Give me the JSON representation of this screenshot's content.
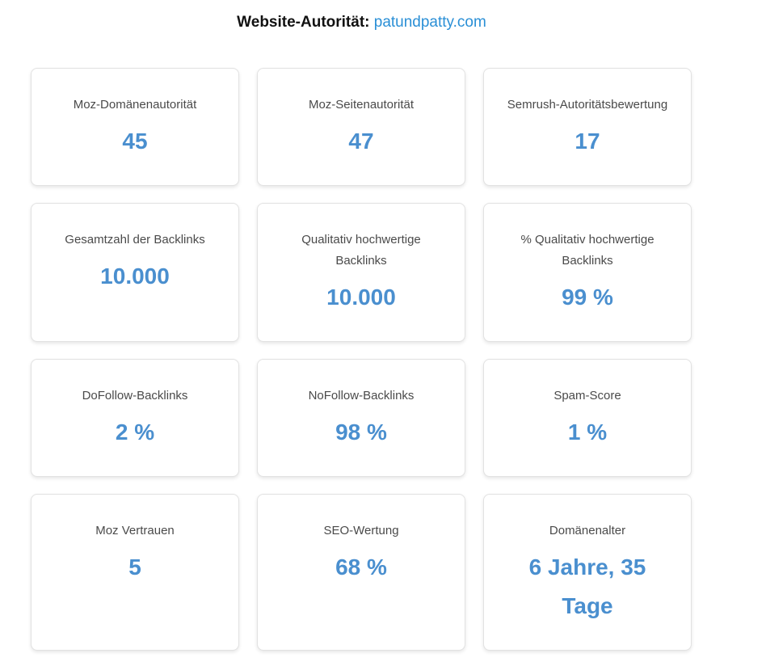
{
  "header": {
    "label": "Website-Autorität:",
    "domain": "patundpatty.com"
  },
  "cards": [
    {
      "label": "Moz-Domänenautorität",
      "value": "45"
    },
    {
      "label": "Moz-Seitenautorität",
      "value": "47"
    },
    {
      "label": "Semrush-Autoritätsbewertung",
      "value": "17"
    },
    {
      "label": "Gesamtzahl der Backlinks",
      "value": "10.000"
    },
    {
      "label": "Qualitativ hochwertige Backlinks",
      "value": "10.000"
    },
    {
      "label": "% Qualitativ hochwertige Backlinks",
      "value": "99 %"
    },
    {
      "label": "DoFollow-Backlinks",
      "value": "2 %"
    },
    {
      "label": "NoFollow-Backlinks",
      "value": "98 %"
    },
    {
      "label": "Spam-Score",
      "value": "1 %"
    },
    {
      "label": "Moz Vertrauen",
      "value": "5"
    },
    {
      "label": "SEO-Wertung",
      "value": "68 %"
    },
    {
      "label": "Domänenalter",
      "value": "6 Jahre, 35 Tage"
    }
  ]
}
